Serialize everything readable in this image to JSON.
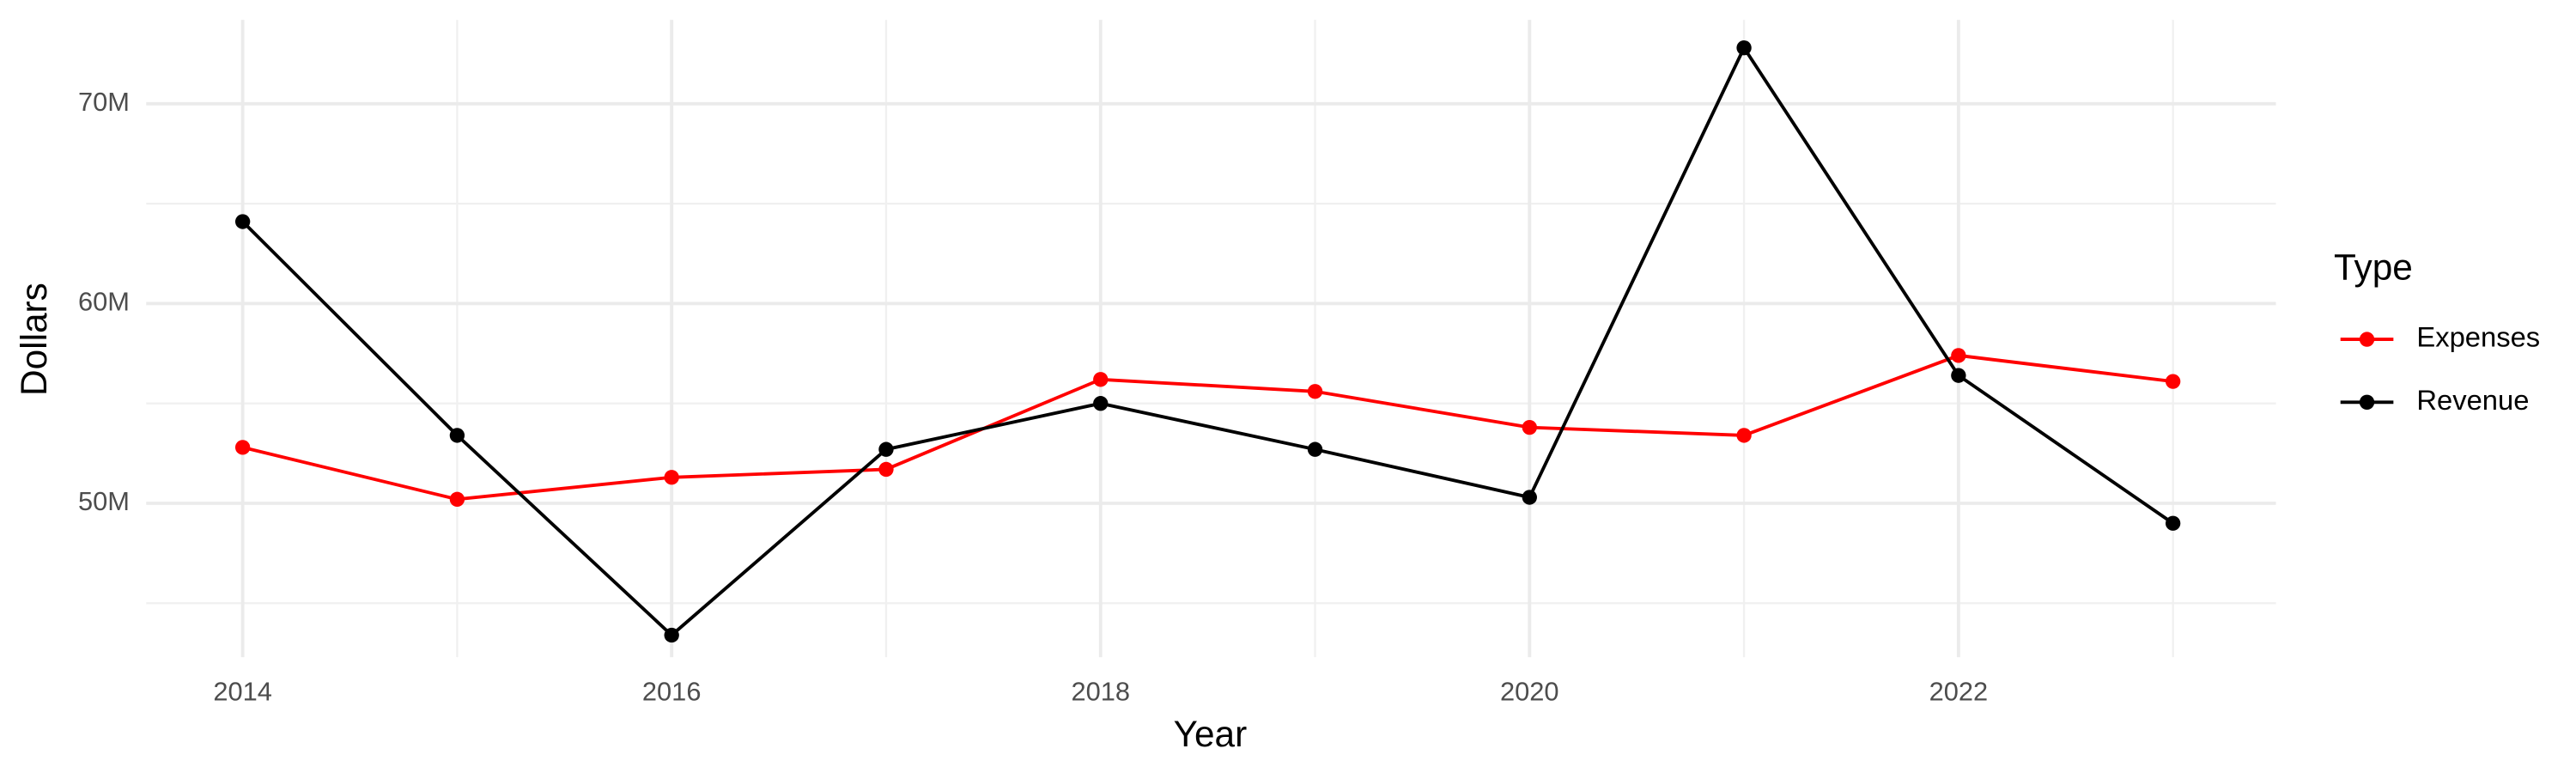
{
  "chart_data": {
    "type": "line",
    "x_label": "Year",
    "y_label": "Dollars",
    "x": [
      2014,
      2015,
      2016,
      2017,
      2018,
      2019,
      2020,
      2021,
      2022,
      2023
    ],
    "series": [
      {
        "name": "Expenses",
        "color": "#ff0000",
        "values": [
          52800000,
          50200000,
          51300000,
          51700000,
          56200000,
          55600000,
          53800000,
          53400000,
          57400000,
          56100000
        ]
      },
      {
        "name": "Revenue",
        "color": "#000000",
        "values": [
          64100000,
          53400000,
          43400000,
          52700000,
          55000000,
          52700000,
          50300000,
          72800000,
          56400000,
          49000000
        ]
      }
    ],
    "xlim": [
      2013.55,
      2023.48
    ],
    "xticks": [
      2014,
      2016,
      2018,
      2020,
      2022
    ],
    "x_minor_ticks": [
      2015,
      2017,
      2019,
      2021,
      2023
    ],
    "ylim": [
      42300000,
      74200000
    ],
    "yticks": [
      {
        "value": 50000000,
        "label": "50M"
      },
      {
        "value": 60000000,
        "label": "60M"
      },
      {
        "value": 70000000,
        "label": "70M"
      }
    ],
    "y_minor_ticks": [
      45000000,
      55000000,
      65000000
    ],
    "grid": true,
    "legend_title": "Type",
    "legend_position": "right"
  }
}
